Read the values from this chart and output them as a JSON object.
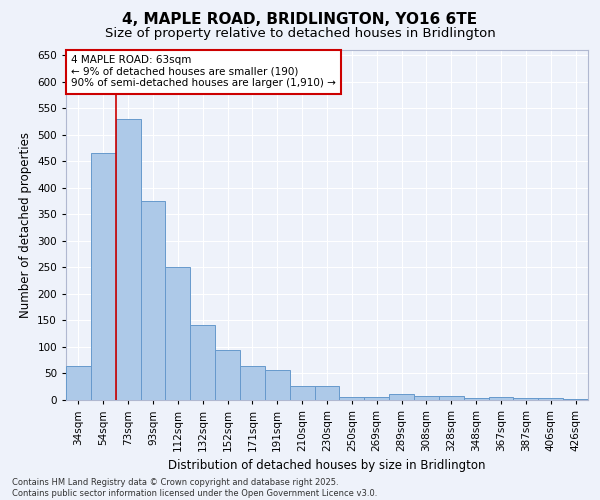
{
  "title": "4, MAPLE ROAD, BRIDLINGTON, YO16 6TE",
  "subtitle": "Size of property relative to detached houses in Bridlington",
  "xlabel": "Distribution of detached houses by size in Bridlington",
  "ylabel": "Number of detached properties",
  "footnote1": "Contains HM Land Registry data © Crown copyright and database right 2025.",
  "footnote2": "Contains public sector information licensed under the Open Government Licence v3.0.",
  "categories": [
    "34sqm",
    "54sqm",
    "73sqm",
    "93sqm",
    "112sqm",
    "132sqm",
    "152sqm",
    "171sqm",
    "191sqm",
    "210sqm",
    "230sqm",
    "250sqm",
    "269sqm",
    "289sqm",
    "308sqm",
    "328sqm",
    "348sqm",
    "367sqm",
    "387sqm",
    "406sqm",
    "426sqm"
  ],
  "values": [
    65,
    465,
    530,
    375,
    250,
    142,
    95,
    65,
    57,
    27,
    27,
    5,
    5,
    11,
    7,
    7,
    3,
    5,
    3,
    3,
    2
  ],
  "bar_color": "#adc9e8",
  "bar_edge_color": "#6699cc",
  "background_color": "#eef2fa",
  "grid_color": "#ffffff",
  "ylim": [
    0,
    660
  ],
  "yticks": [
    0,
    50,
    100,
    150,
    200,
    250,
    300,
    350,
    400,
    450,
    500,
    550,
    600,
    650
  ],
  "vline_x_index": 1,
  "vline_color": "#cc0000",
  "annotation_title": "4 MAPLE ROAD: 63sqm",
  "annotation_line1": "← 9% of detached houses are smaller (190)",
  "annotation_line2": "90% of semi-detached houses are larger (1,910) →",
  "annotation_box_color": "#cc0000",
  "title_fontsize": 11,
  "subtitle_fontsize": 9.5,
  "tick_fontsize": 7.5,
  "label_fontsize": 8.5,
  "annotation_fontsize": 7.5,
  "footnote_fontsize": 6
}
